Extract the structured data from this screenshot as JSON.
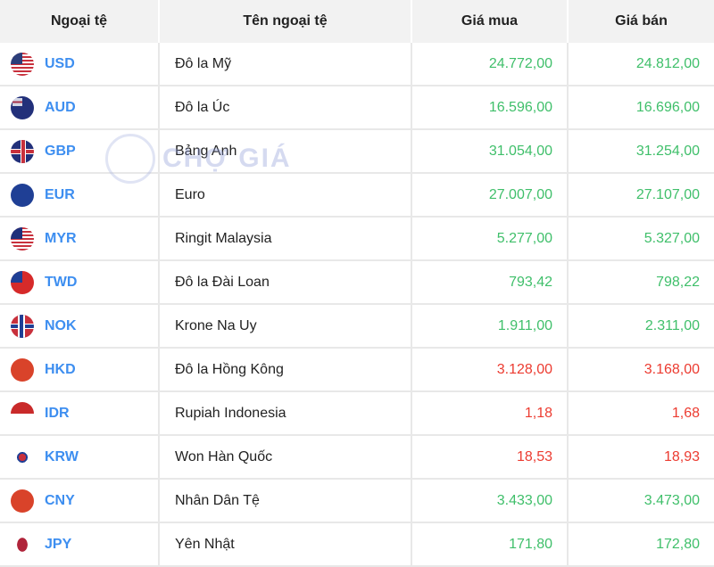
{
  "headers": {
    "currency": "Ngoại tệ",
    "name": "Tên ngoại tệ",
    "buy": "Giá mua",
    "sell": "Giá bán"
  },
  "watermark": "CHỢ GIÁ",
  "colors": {
    "code": "#3d8ef0",
    "up": "#3fbf6a",
    "down": "#ec3b30"
  },
  "rows": [
    {
      "code": "USD",
      "name": "Đô la Mỹ",
      "buy": "24.772,00",
      "sell": "24.812,00",
      "trend": "up"
    },
    {
      "code": "AUD",
      "name": "Đô la Úc",
      "buy": "16.596,00",
      "sell": "16.696,00",
      "trend": "up"
    },
    {
      "code": "GBP",
      "name": "Bảng Anh",
      "buy": "31.054,00",
      "sell": "31.254,00",
      "trend": "up"
    },
    {
      "code": "EUR",
      "name": "Euro",
      "buy": "27.007,00",
      "sell": "27.107,00",
      "trend": "up"
    },
    {
      "code": "MYR",
      "name": "Ringit Malaysia",
      "buy": "5.277,00",
      "sell": "5.327,00",
      "trend": "up"
    },
    {
      "code": "TWD",
      "name": "Đô la Đài Loan",
      "buy": "793,42",
      "sell": "798,22",
      "trend": "up"
    },
    {
      "code": "NOK",
      "name": "Krone Na Uy",
      "buy": "1.911,00",
      "sell": "2.311,00",
      "trend": "up"
    },
    {
      "code": "HKD",
      "name": "Đô la Hồng Kông",
      "buy": "3.128,00",
      "sell": "3.168,00",
      "trend": "down"
    },
    {
      "code": "IDR",
      "name": "Rupiah Indonesia",
      "buy": "1,18",
      "sell": "1,68",
      "trend": "down"
    },
    {
      "code": "KRW",
      "name": "Won Hàn Quốc",
      "buy": "18,53",
      "sell": "18,93",
      "trend": "down"
    },
    {
      "code": "CNY",
      "name": "Nhân Dân Tệ",
      "buy": "3.433,00",
      "sell": "3.473,00",
      "trend": "up"
    },
    {
      "code": "JPY",
      "name": "Yên Nhật",
      "buy": "171,80",
      "sell": "172,80",
      "trend": "up"
    }
  ]
}
